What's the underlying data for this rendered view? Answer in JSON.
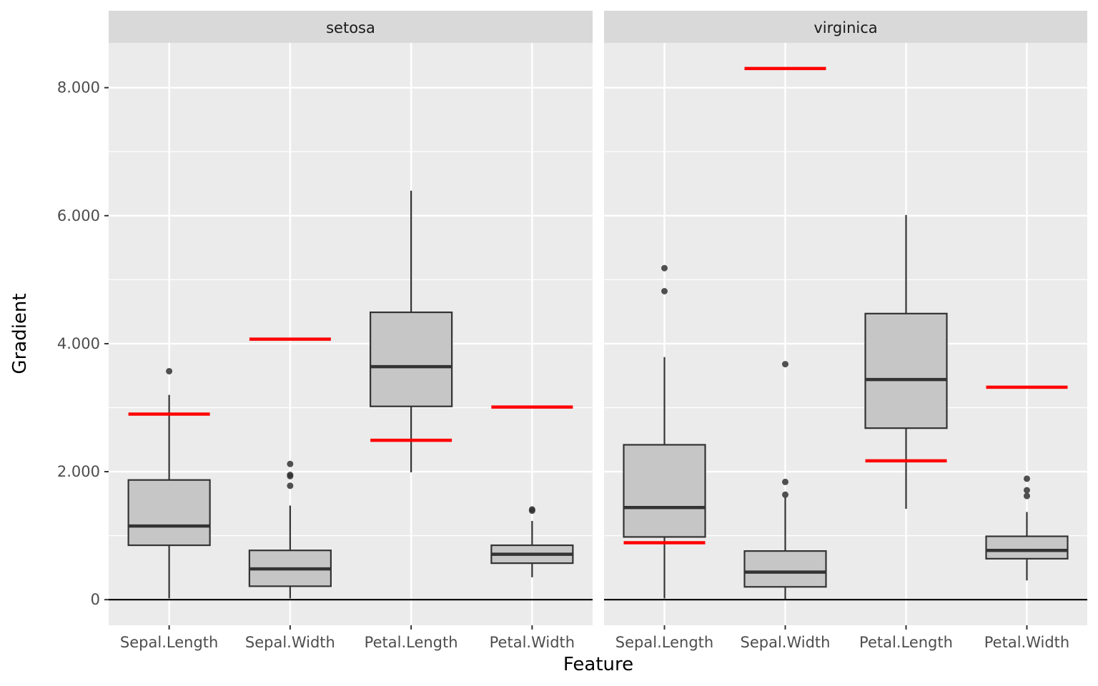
{
  "chart_data": {
    "type": "boxplot",
    "xlabel": "Feature",
    "ylabel": "Gradient",
    "ylim": [
      -0.4,
      8.7
    ],
    "yticks": [
      0,
      2,
      4,
      6,
      8
    ],
    "ytick_labels": [
      "0",
      "2.000",
      "4.000",
      "6.000",
      "8.000"
    ],
    "categories": [
      "Sepal.Length",
      "Sepal.Width",
      "Petal.Length",
      "Petal.Width"
    ],
    "grid": true,
    "legend": "none",
    "colors": {
      "box_fill": "#c6c6c6",
      "box_stroke": "#333333",
      "reference": "#ff0000",
      "panel_bg": "#ebebeb",
      "strip_bg": "#d9d9d9"
    },
    "panels": [
      {
        "facet": "setosa",
        "boxes": [
          {
            "category": "Sepal.Length",
            "q1": 0.85,
            "median": 1.15,
            "q3": 1.87,
            "lower": 0.02,
            "upper": 3.2,
            "outliers": [
              3.57
            ],
            "reference": 2.9
          },
          {
            "category": "Sepal.Width",
            "q1": 0.21,
            "median": 0.48,
            "q3": 0.77,
            "lower": 0.02,
            "upper": 1.47,
            "outliers": [
              1.78,
              1.93,
              1.95,
              2.12
            ],
            "reference": 4.07
          },
          {
            "category": "Petal.Length",
            "q1": 3.02,
            "median": 3.64,
            "q3": 4.49,
            "lower": 1.99,
            "upper": 6.39,
            "outliers": [],
            "reference": 2.49
          },
          {
            "category": "Petal.Width",
            "q1": 0.57,
            "median": 0.71,
            "q3": 0.85,
            "lower": 0.35,
            "upper": 1.23,
            "outliers": [
              1.39,
              1.41
            ],
            "reference": 3.01
          }
        ]
      },
      {
        "facet": "virginica",
        "boxes": [
          {
            "category": "Sepal.Length",
            "q1": 0.98,
            "median": 1.44,
            "q3": 2.42,
            "lower": 0.02,
            "upper": 3.79,
            "outliers": [
              4.82,
              5.18
            ],
            "reference": 0.89
          },
          {
            "category": "Sepal.Width",
            "q1": 0.2,
            "median": 0.43,
            "q3": 0.76,
            "lower": 0.01,
            "upper": 1.6,
            "outliers": [
              1.64,
              1.84,
              3.68
            ],
            "reference": 8.3
          },
          {
            "category": "Petal.Length",
            "q1": 2.68,
            "median": 3.44,
            "q3": 4.47,
            "lower": 1.42,
            "upper": 6.01,
            "outliers": [],
            "reference": 2.17
          },
          {
            "category": "Petal.Width",
            "q1": 0.64,
            "median": 0.77,
            "q3": 0.99,
            "lower": 0.3,
            "upper": 1.37,
            "outliers": [
              1.62,
              1.71,
              1.89
            ],
            "reference": 3.32
          }
        ]
      }
    ]
  }
}
